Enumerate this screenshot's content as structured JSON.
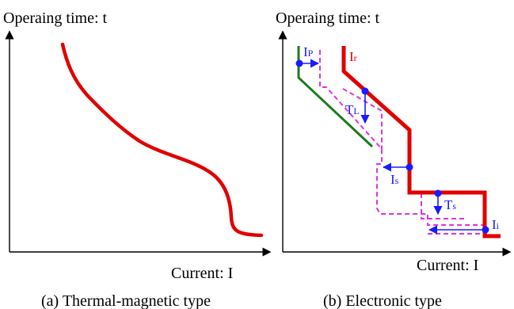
{
  "panel_a": {
    "y_axis_label": "Operaing time: t",
    "x_axis_label": "Current: I",
    "caption": "(a) Thermal-magnetic type"
  },
  "panel_b": {
    "y_axis_label": "Operaing time: t",
    "x_axis_label": "Current: I",
    "caption": "(b) Electronic type",
    "annotations": {
      "ir": "I",
      "ir_sub": "r",
      "ip": "I",
      "ip_sub": "P",
      "tl": "T",
      "tl_sub": "L",
      "is": "I",
      "is_sub": "s",
      "ts": "T",
      "ts_sub": "s",
      "ii": "I",
      "ii_sub": "i"
    }
  },
  "colors": {
    "main_curve": "#e00000",
    "green_curve": "#1e7a1e",
    "dashed_curve": "#e030e0",
    "marker": "#1a1aff",
    "axis": "#000000"
  }
}
